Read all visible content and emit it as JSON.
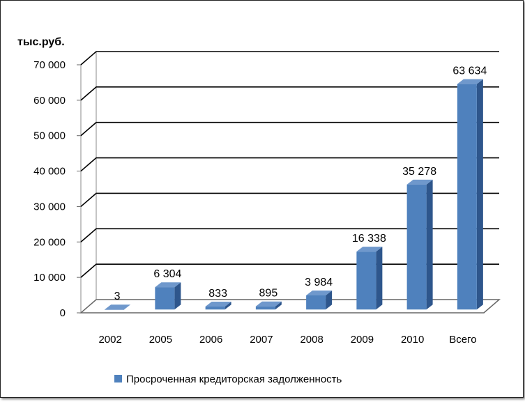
{
  "chart_data": {
    "type": "bar",
    "unit_label": "тыс.руб.",
    "categories": [
      "2002",
      "2005",
      "2006",
      "2007",
      "2008",
      "2009",
      "2010",
      "Всего"
    ],
    "series": [
      {
        "name": "Просроченная кредиторская задолженность",
        "values": [
          3,
          6304,
          833,
          895,
          3984,
          16338,
          35278,
          63634
        ],
        "data_labels": [
          "3",
          "6 304",
          "833",
          "895",
          "3 984",
          "16 338",
          "35 278",
          "63 634"
        ]
      }
    ],
    "ylim": [
      0,
      70000
    ],
    "yticks": [
      0,
      10000,
      20000,
      30000,
      40000,
      50000,
      60000,
      70000
    ],
    "ytick_labels": [
      "0",
      "10 000",
      "20 000",
      "30 000",
      "40 000",
      "50 000",
      "60 000",
      "70 000"
    ],
    "grid": true,
    "legend_position": "bottom",
    "colors": {
      "bar_front": "#4F81BD",
      "bar_side": "#2E568C",
      "bar_top": "#6F98CC"
    }
  }
}
